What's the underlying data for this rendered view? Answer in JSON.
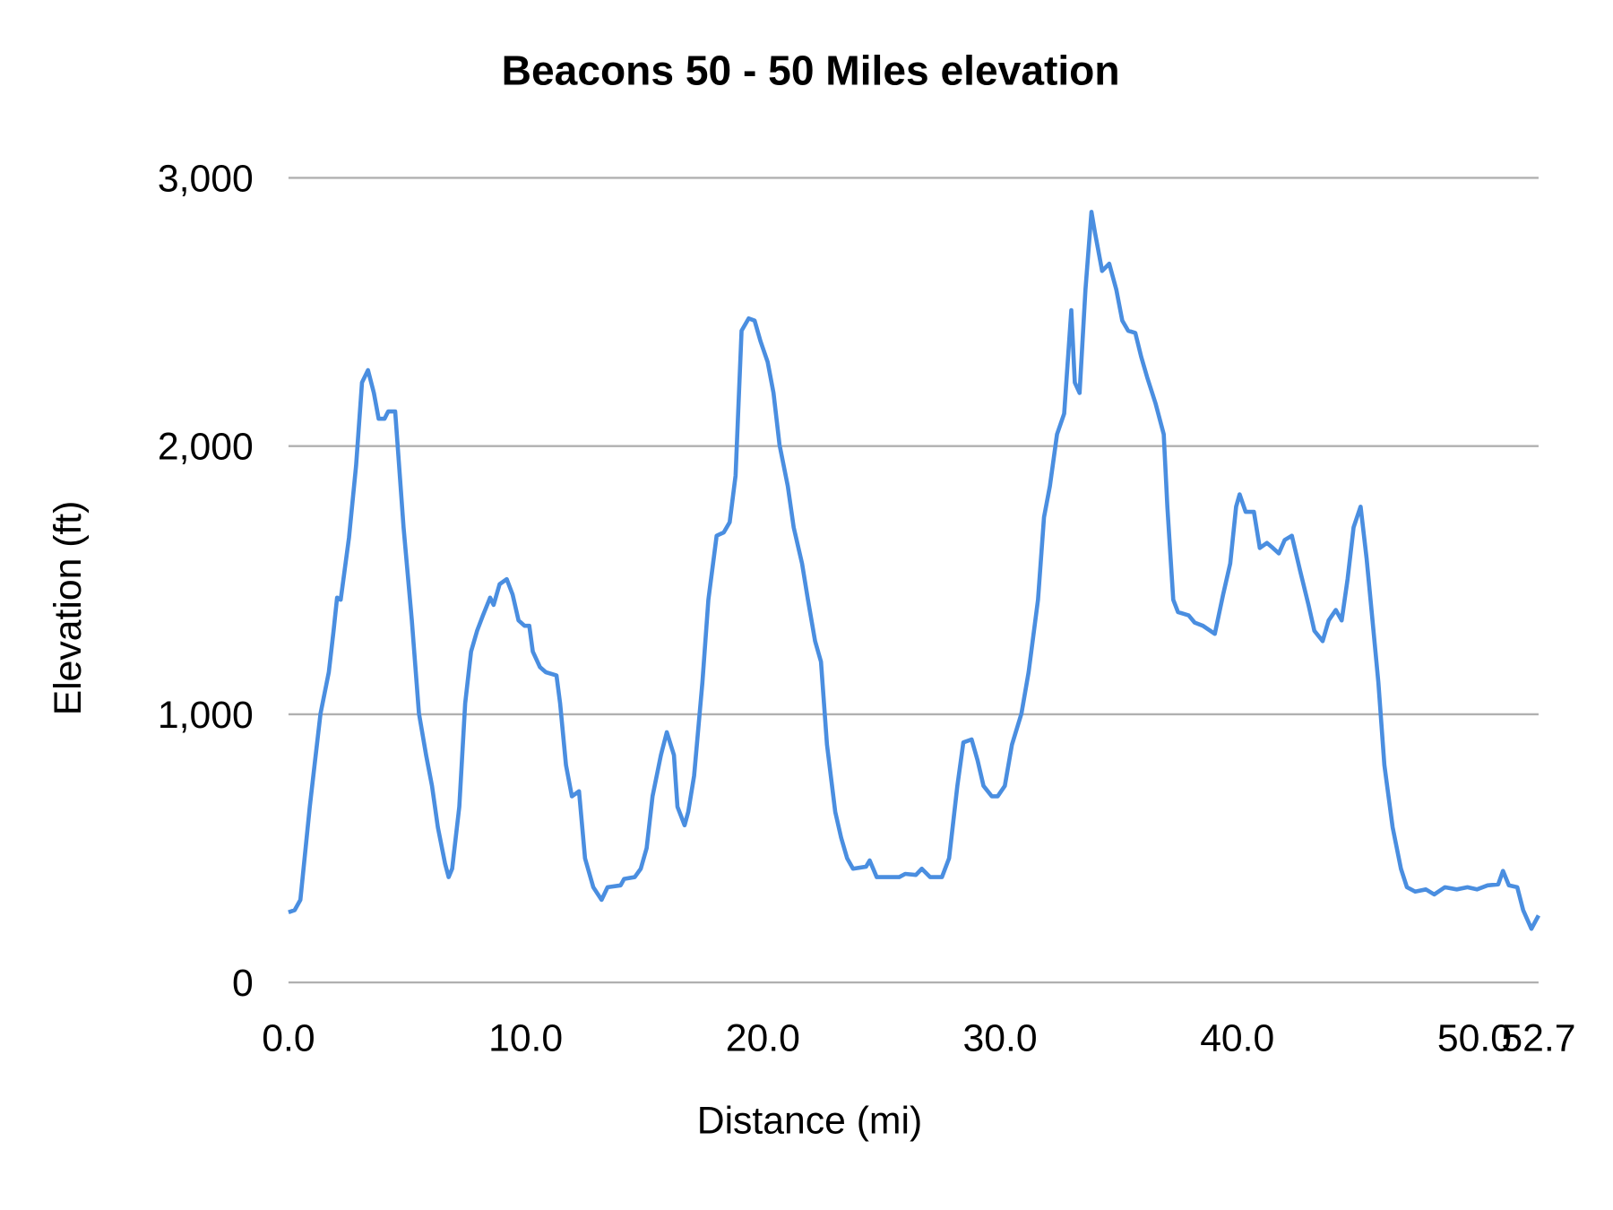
{
  "chart_data": {
    "type": "line",
    "title": "Beacons 50 - 50 Miles elevation",
    "xlabel": "Distance (mi)",
    "ylabel": "Elevation (ft)",
    "xlim": [
      0,
      52.7
    ],
    "ylim": [
      0,
      3000
    ],
    "x_ticks": [
      "0.0",
      "10.0",
      "20.0",
      "30.0",
      "40.0",
      "50.0",
      "52.7"
    ],
    "x_tick_values": [
      0,
      10,
      20,
      30,
      40,
      50,
      52.7
    ],
    "y_ticks": [
      "0",
      "1,000",
      "2,000",
      "3,000"
    ],
    "y_tick_values": [
      0,
      1000,
      2000,
      3000
    ],
    "grid": "horizontal",
    "legend": "none",
    "line_color": "#4a8ee0",
    "series": [
      {
        "x": [
          0,
          0.26,
          0.5,
          0.9,
          1.1,
          1.35,
          1.7,
          1.9,
          2.05,
          2.2,
          2.55,
          2.85,
          3.1,
          3.35,
          3.6,
          3.8,
          4.05,
          4.2,
          4.5,
          4.85,
          5.2,
          5.5,
          5.8,
          6.05,
          6.3,
          6.6,
          6.75,
          6.9,
          7.2,
          7.45,
          7.7,
          7.95,
          8.2,
          8.5,
          8.65,
          8.9,
          9.2,
          9.45,
          9.7,
          9.95,
          10.15,
          10.3,
          10.6,
          10.85,
          11.3,
          11.45,
          11.7,
          11.95,
          12.25,
          12.5,
          12.85,
          13.2,
          13.45,
          14.0,
          14.15,
          14.6,
          14.85,
          15.1,
          15.35,
          15.7,
          15.95,
          16.25,
          16.4,
          16.7,
          16.85,
          17.1,
          17.45,
          17.7,
          18.05,
          18.35,
          18.6,
          18.85,
          19.1,
          19.4,
          19.65,
          19.9,
          20.2,
          20.45,
          20.7,
          21.05,
          21.3,
          21.65,
          21.9,
          22.2,
          22.45,
          22.7,
          23.05,
          23.3,
          23.55,
          23.8,
          24.35,
          24.5,
          24.8,
          25.75,
          26.0,
          26.45,
          26.7,
          27.05,
          27.55,
          27.85,
          28.2,
          28.45,
          28.8,
          29.05,
          29.3,
          29.65,
          29.9,
          30.2,
          30.5,
          30.9,
          31.2,
          31.6,
          31.85,
          32.1,
          32.4,
          32.7,
          33.0,
          33.15,
          33.35,
          33.6,
          33.85,
          34.0,
          34.3,
          34.6,
          34.9,
          35.15,
          35.4,
          35.7,
          35.95,
          36.2,
          36.55,
          36.9,
          37.05,
          37.3,
          37.5,
          37.95,
          38.2,
          38.55,
          39.05,
          39.4,
          39.7,
          39.95,
          40.1,
          40.35,
          40.7,
          40.95,
          41.25,
          41.5,
          41.75,
          42.0,
          42.3,
          42.65,
          43.0,
          43.25,
          43.6,
          43.85,
          44.15,
          44.4,
          44.65,
          44.9,
          45.2,
          45.45,
          45.7,
          45.95,
          46.2,
          46.55,
          46.9,
          47.15,
          47.5,
          47.95,
          48.3,
          48.75,
          49.25,
          49.7,
          50.1,
          50.55,
          51.0,
          51.2,
          51.45,
          51.8,
          52.05,
          52.4,
          52.7
        ],
        "y": [
          262,
          270,
          308,
          655,
          810,
          1003,
          1157,
          1311,
          1435,
          1427,
          1658,
          1928,
          2237,
          2283,
          2198,
          2102,
          2102,
          2129,
          2129,
          1697,
          1350,
          1003,
          848,
          733,
          578,
          444,
          393,
          424,
          655,
          1041,
          1234,
          1311,
          1369,
          1435,
          1408,
          1485,
          1504,
          1446,
          1350,
          1330,
          1330,
          1234,
          1176,
          1157,
          1145,
          1041,
          810,
          694,
          713,
          463,
          355,
          308,
          355,
          362,
          386,
          393,
          424,
          501,
          694,
          848,
          933,
          848,
          655,
          586,
          636,
          771,
          1118,
          1427,
          1666,
          1678,
          1716,
          1890,
          2430,
          2476,
          2468,
          2391,
          2314,
          2198,
          2005,
          1851,
          1697,
          1562,
          1427,
          1273,
          1196,
          887,
          636,
          540,
          463,
          424,
          432,
          455,
          393,
          393,
          405,
          401,
          424,
          393,
          393,
          463,
          733,
          895,
          906,
          829,
          733,
          694,
          694,
          733,
          887,
          1003,
          1157,
          1427,
          1735,
          1851,
          2044,
          2121,
          2507,
          2237,
          2198,
          2584,
          2873,
          2796,
          2653,
          2680,
          2584,
          2468,
          2430,
          2422,
          2333,
          2256,
          2160,
          2044,
          1774,
          1427,
          1381,
          1369,
          1342,
          1330,
          1300,
          1446,
          1562,
          1774,
          1820,
          1755,
          1755,
          1620,
          1639,
          1620,
          1600,
          1650,
          1666,
          1535,
          1408,
          1311,
          1273,
          1350,
          1389,
          1350,
          1504,
          1697,
          1774,
          1581,
          1350,
          1118,
          810,
          578,
          424,
          355,
          339,
          347,
          328,
          355,
          347,
          355,
          347,
          362,
          366,
          416,
          362,
          355,
          270,
          200,
          250
        ]
      }
    ]
  }
}
